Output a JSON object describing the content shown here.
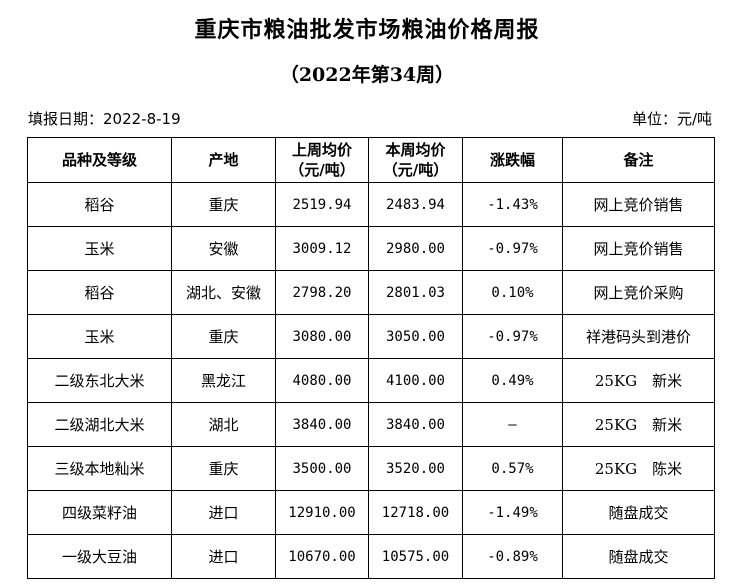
{
  "title": "重庆市粮油批发市场粮油价格周报",
  "subtitle": "（2022年第34周）",
  "fill_date": "填报日期：2022-8-19",
  "unit": "单位：元/吨",
  "headers": [
    "品种及等级",
    "产地",
    "上周均价（元/吨）",
    "本周均价（元/吨）",
    "涨跌幅",
    "备注"
  ],
  "header_lines": [
    [
      "品种及等级"
    ],
    [
      "产地"
    ],
    [
      "上周均价",
      "（元/吨）"
    ],
    [
      "本周均价",
      "（元/吨）"
    ],
    [
      "涨跌幅"
    ],
    [
      "备注"
    ]
  ],
  "rows": [
    [
      "稻谷",
      "重庆",
      "2519.94",
      "2483.94",
      "-1.43%",
      "网上竞价销售"
    ],
    [
      "玉米",
      "安徽",
      "3009.12",
      "2980.00",
      "-0.97%",
      "网上竞价销售"
    ],
    [
      "稻谷",
      "湖北、安徽",
      "2798.20",
      "2801.03",
      "0.10%",
      "网上竞价采购"
    ],
    [
      "玉米",
      "重庆",
      "3080.00",
      "3050.00",
      "-0.97%",
      "祥港码头到港价"
    ],
    [
      "二级东北大米",
      "黑龙江",
      "4080.00",
      "4100.00",
      "0.49%",
      "25KG　新米"
    ],
    [
      "二级湖北大米",
      "湖北",
      "3840.00",
      "3840.00",
      "—",
      "25KG　新米"
    ],
    [
      "三级本地籼米",
      "重庆",
      "3500.00",
      "3520.00",
      "0.57%",
      "25KG　陈米"
    ],
    [
      "四级菜籽油",
      "进口",
      "12910.00",
      "12718.00",
      "-1.49%",
      "随盘成交"
    ],
    [
      "一级大豆油",
      "进口",
      "10670.00",
      "10575.00",
      "-0.89%",
      "随盘成交"
    ]
  ]
}
